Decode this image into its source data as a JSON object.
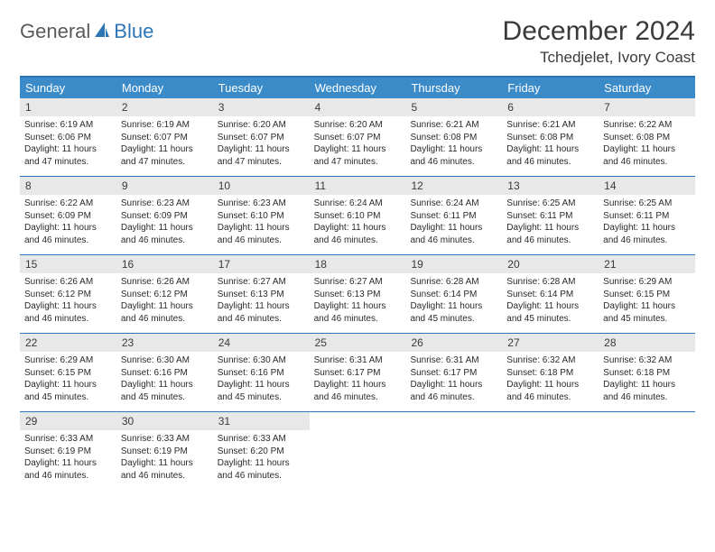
{
  "logo": {
    "text1": "General",
    "text2": "Blue"
  },
  "title": "December 2024",
  "location": "Tchedjelet, Ivory Coast",
  "colors": {
    "header_bg": "#3b8bc9",
    "header_text": "#ffffff",
    "border": "#2f75b5",
    "daynum_bg": "#e8e8e8",
    "text": "#3a3a3a",
    "logo_gray": "#5a5a5a",
    "logo_blue": "#2f75b5"
  },
  "weekdays": [
    "Sunday",
    "Monday",
    "Tuesday",
    "Wednesday",
    "Thursday",
    "Friday",
    "Saturday"
  ],
  "weeks": [
    [
      {
        "n": "1",
        "sr": "6:19 AM",
        "ss": "6:06 PM",
        "dh": "11",
        "dm": "47"
      },
      {
        "n": "2",
        "sr": "6:19 AM",
        "ss": "6:07 PM",
        "dh": "11",
        "dm": "47"
      },
      {
        "n": "3",
        "sr": "6:20 AM",
        "ss": "6:07 PM",
        "dh": "11",
        "dm": "47"
      },
      {
        "n": "4",
        "sr": "6:20 AM",
        "ss": "6:07 PM",
        "dh": "11",
        "dm": "47"
      },
      {
        "n": "5",
        "sr": "6:21 AM",
        "ss": "6:08 PM",
        "dh": "11",
        "dm": "46"
      },
      {
        "n": "6",
        "sr": "6:21 AM",
        "ss": "6:08 PM",
        "dh": "11",
        "dm": "46"
      },
      {
        "n": "7",
        "sr": "6:22 AM",
        "ss": "6:08 PM",
        "dh": "11",
        "dm": "46"
      }
    ],
    [
      {
        "n": "8",
        "sr": "6:22 AM",
        "ss": "6:09 PM",
        "dh": "11",
        "dm": "46"
      },
      {
        "n": "9",
        "sr": "6:23 AM",
        "ss": "6:09 PM",
        "dh": "11",
        "dm": "46"
      },
      {
        "n": "10",
        "sr": "6:23 AM",
        "ss": "6:10 PM",
        "dh": "11",
        "dm": "46"
      },
      {
        "n": "11",
        "sr": "6:24 AM",
        "ss": "6:10 PM",
        "dh": "11",
        "dm": "46"
      },
      {
        "n": "12",
        "sr": "6:24 AM",
        "ss": "6:11 PM",
        "dh": "11",
        "dm": "46"
      },
      {
        "n": "13",
        "sr": "6:25 AM",
        "ss": "6:11 PM",
        "dh": "11",
        "dm": "46"
      },
      {
        "n": "14",
        "sr": "6:25 AM",
        "ss": "6:11 PM",
        "dh": "11",
        "dm": "46"
      }
    ],
    [
      {
        "n": "15",
        "sr": "6:26 AM",
        "ss": "6:12 PM",
        "dh": "11",
        "dm": "46"
      },
      {
        "n": "16",
        "sr": "6:26 AM",
        "ss": "6:12 PM",
        "dh": "11",
        "dm": "46"
      },
      {
        "n": "17",
        "sr": "6:27 AM",
        "ss": "6:13 PM",
        "dh": "11",
        "dm": "46"
      },
      {
        "n": "18",
        "sr": "6:27 AM",
        "ss": "6:13 PM",
        "dh": "11",
        "dm": "46"
      },
      {
        "n": "19",
        "sr": "6:28 AM",
        "ss": "6:14 PM",
        "dh": "11",
        "dm": "45"
      },
      {
        "n": "20",
        "sr": "6:28 AM",
        "ss": "6:14 PM",
        "dh": "11",
        "dm": "45"
      },
      {
        "n": "21",
        "sr": "6:29 AM",
        "ss": "6:15 PM",
        "dh": "11",
        "dm": "45"
      }
    ],
    [
      {
        "n": "22",
        "sr": "6:29 AM",
        "ss": "6:15 PM",
        "dh": "11",
        "dm": "45"
      },
      {
        "n": "23",
        "sr": "6:30 AM",
        "ss": "6:16 PM",
        "dh": "11",
        "dm": "45"
      },
      {
        "n": "24",
        "sr": "6:30 AM",
        "ss": "6:16 PM",
        "dh": "11",
        "dm": "45"
      },
      {
        "n": "25",
        "sr": "6:31 AM",
        "ss": "6:17 PM",
        "dh": "11",
        "dm": "46"
      },
      {
        "n": "26",
        "sr": "6:31 AM",
        "ss": "6:17 PM",
        "dh": "11",
        "dm": "46"
      },
      {
        "n": "27",
        "sr": "6:32 AM",
        "ss": "6:18 PM",
        "dh": "11",
        "dm": "46"
      },
      {
        "n": "28",
        "sr": "6:32 AM",
        "ss": "6:18 PM",
        "dh": "11",
        "dm": "46"
      }
    ],
    [
      {
        "n": "29",
        "sr": "6:33 AM",
        "ss": "6:19 PM",
        "dh": "11",
        "dm": "46"
      },
      {
        "n": "30",
        "sr": "6:33 AM",
        "ss": "6:19 PM",
        "dh": "11",
        "dm": "46"
      },
      {
        "n": "31",
        "sr": "6:33 AM",
        "ss": "6:20 PM",
        "dh": "11",
        "dm": "46"
      },
      null,
      null,
      null,
      null
    ]
  ],
  "labels": {
    "sunrise": "Sunrise:",
    "sunset": "Sunset:",
    "daylight": "Daylight:",
    "hours": "hours",
    "and": "and",
    "minutes": "minutes."
  }
}
